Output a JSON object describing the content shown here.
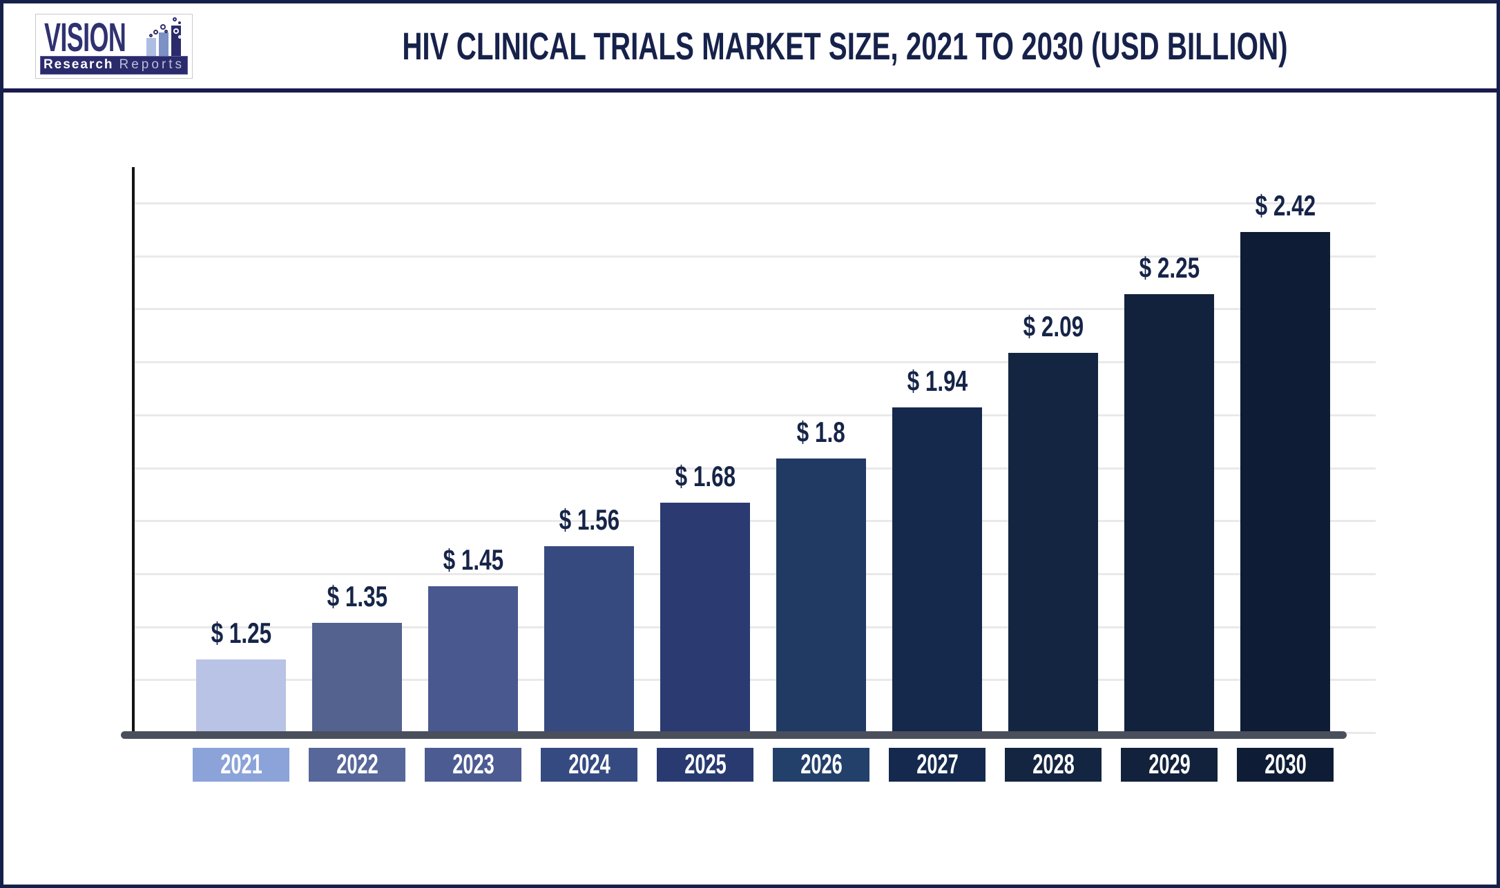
{
  "logo": {
    "brand": "VISION",
    "subtitle_bold": "Research",
    "subtitle_light": "Reports"
  },
  "header": {
    "title": "HIV CLINICAL TRIALS MARKET SIZE, 2021 TO 2030 (USD BILLION)"
  },
  "chart_data": {
    "type": "bar",
    "title": "HIV Clinical Trials Market Size, 2021 to 2030 (USD Billion)",
    "categories": [
      "2021",
      "2022",
      "2023",
      "2024",
      "2025",
      "2026",
      "2027",
      "2028",
      "2029",
      "2030"
    ],
    "values": [
      1.25,
      1.35,
      1.45,
      1.56,
      1.68,
      1.8,
      1.94,
      2.09,
      2.25,
      2.42
    ],
    "value_labels": [
      "$ 1.25",
      "$ 1.35",
      "$ 1.45",
      "$ 1.56",
      "$ 1.68",
      "$ 1.8",
      "$ 1.94",
      "$ 2.09",
      "$ 2.25",
      "$ 2.42"
    ],
    "currency_prefix": "$",
    "unit": "USD Billion",
    "xlabel": "",
    "ylabel": "",
    "ylim": [
      1.05,
      2.5
    ],
    "grid": true,
    "gridline_count": 10,
    "legend": "none",
    "bar_colors": [
      "#b9c3e5",
      "#53628f",
      "#49588f",
      "#374a80",
      "#2b3a71",
      "#203a64",
      "#15294d",
      "#142541",
      "#12213c",
      "#0f1c36"
    ],
    "label_box_colors": [
      "#8ba3d8",
      "#57679a",
      "#4c5b92",
      "#354a80",
      "#293a70",
      "#23406b",
      "#15294e",
      "#142541",
      "#12213c",
      "#0f1c36"
    ]
  },
  "colors": {
    "background": "#ffffff",
    "frame_border": "#16204a",
    "header_divider": "#1a1a4e",
    "title_text": "#16224a",
    "value_label_text": "#162448",
    "year_label_text": "#ffffff",
    "x_axis_line": "#4a4f5c",
    "y_axis_line": "#141414",
    "gridline": "#e9e9e9",
    "logo_navy": "#2b2b6c",
    "logo_brand_text": "#2f3170",
    "logo_bar_light": "#aebde2",
    "logo_bar_mid": "#7c91c4"
  }
}
